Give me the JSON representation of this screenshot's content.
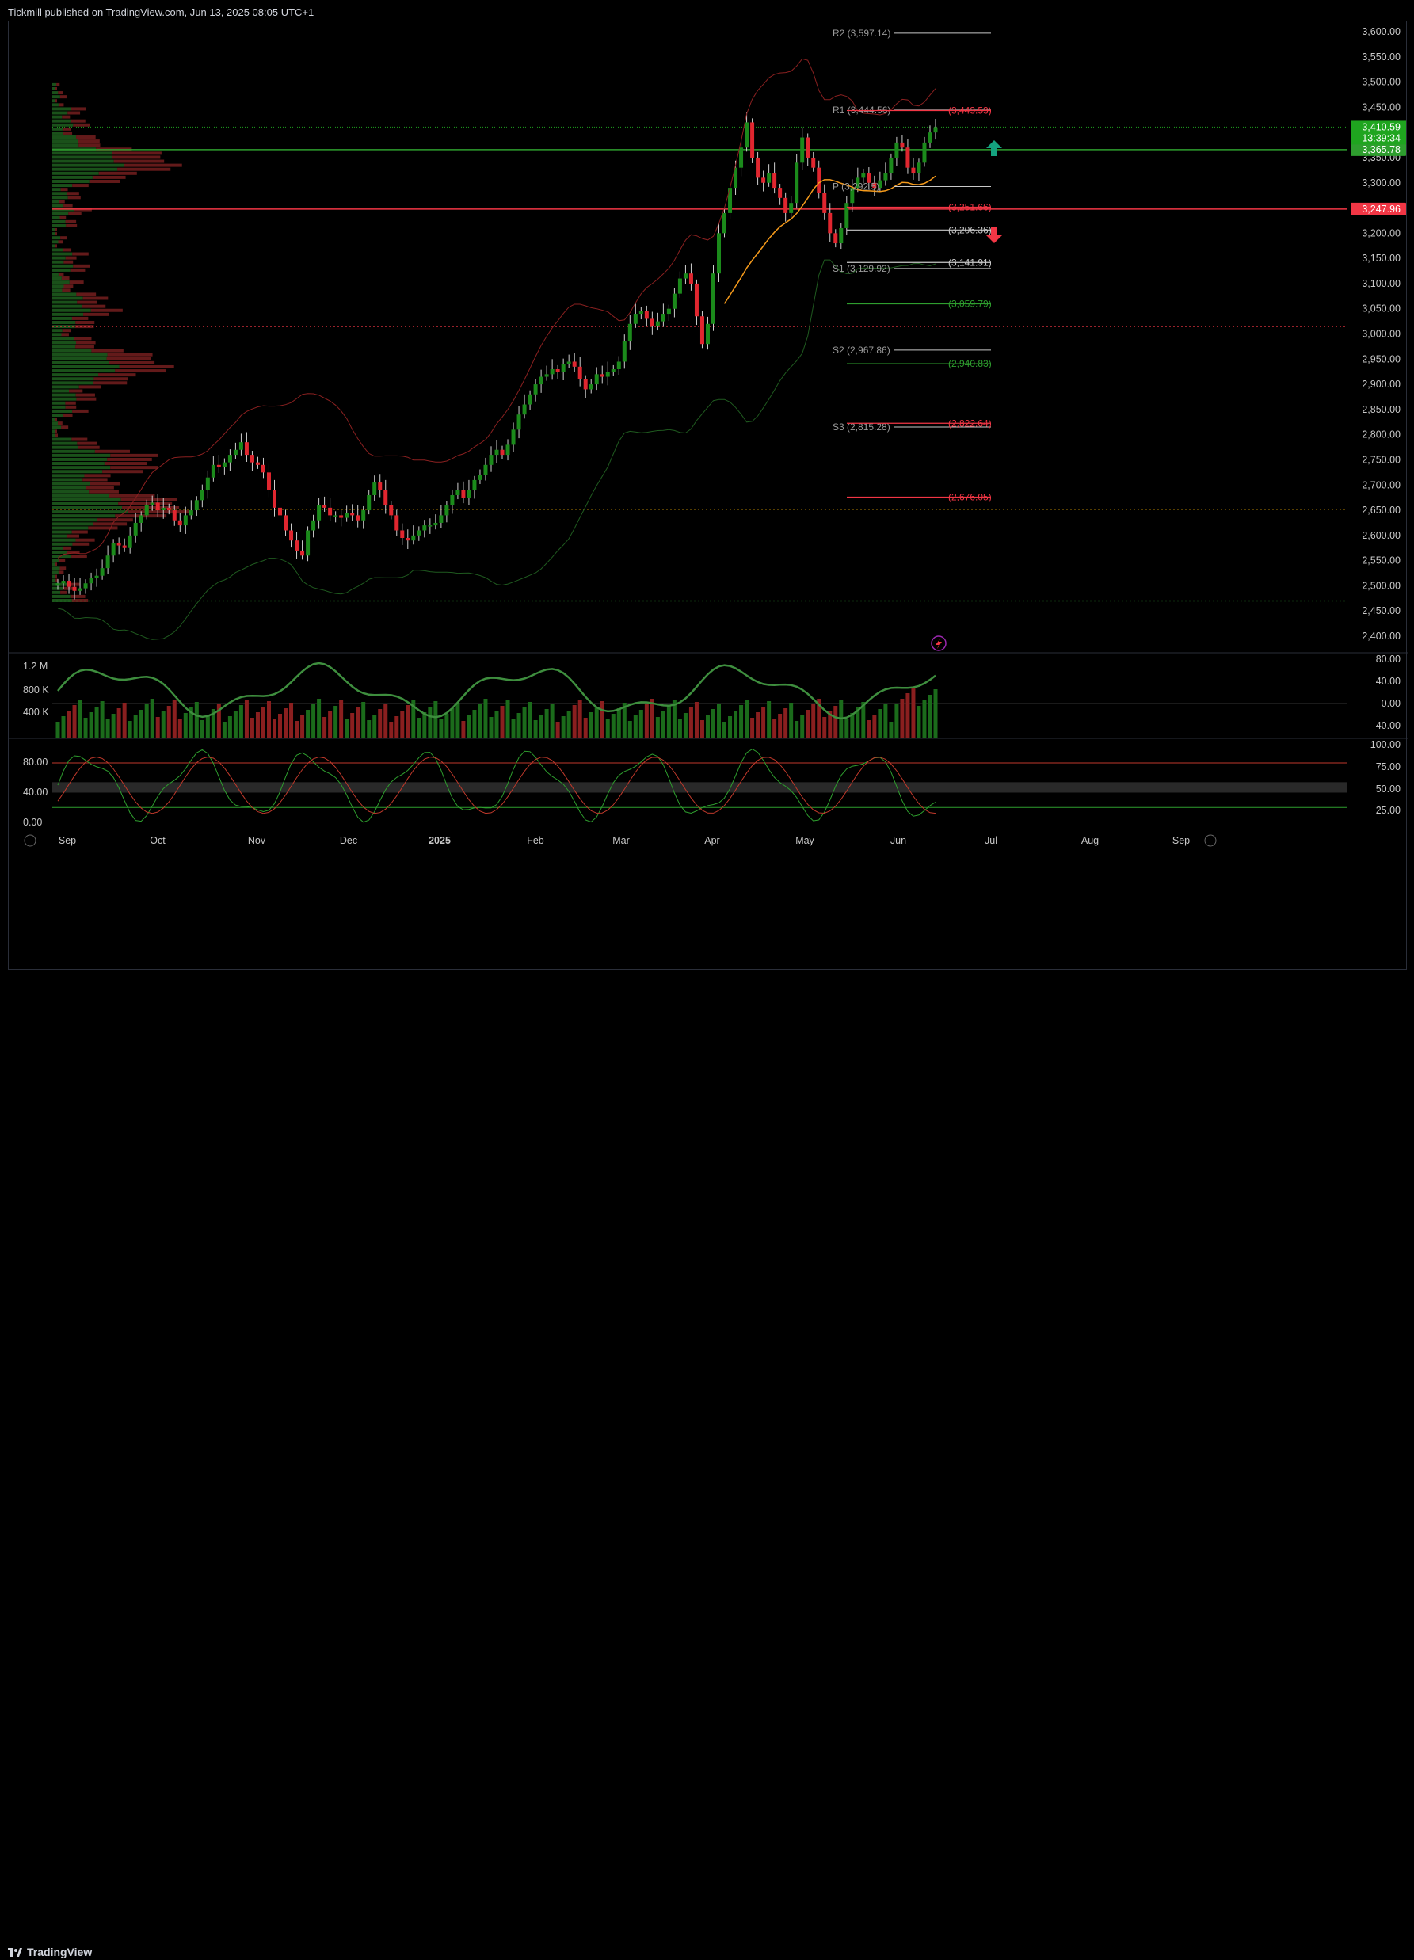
{
  "header": {
    "publisher_text": "Tickmill published on TradingView.com, Jun 13, 2025 08:05 UTC+1"
  },
  "footer": {
    "brand": "TradingView"
  },
  "theme": {
    "bg": "#000000",
    "up": "#1b8a1b",
    "down": "#e0262f",
    "grid": "#1a1a1a",
    "text": "#b2b5be",
    "last_price_bg": "#1fa51f",
    "resistance_color": "#2e9e2e",
    "support_color": "#f23645"
  },
  "chart_data": [
    {
      "type": "candlestick",
      "symbol_hint": "Gold spot daily",
      "price_axis_ticks": [
        "3,600.00",
        "3,550.00",
        "3,500.00",
        "3,450.00",
        "3,400.00",
        "3,350.00",
        "3,300.00",
        "3,250.00",
        "3,200.00",
        "3,150.00",
        "3,100.00",
        "3,050.00",
        "3,000.00",
        "2,950.00",
        "2,900.00",
        "2,850.00",
        "2,800.00",
        "2,750.00",
        "2,700.00",
        "2,650.00",
        "2,600.00",
        "2,550.00",
        "2,500.00",
        "2,450.00",
        "2,400.00"
      ],
      "ylim": [
        2370,
        3650
      ],
      "time_axis_ticks": [
        "Sep",
        "Oct",
        "Nov",
        "Dec",
        "2025",
        "Feb",
        "Mar",
        "Apr",
        "May",
        "Jun",
        "Jul",
        "Aug",
        "Sep"
      ],
      "last_price": {
        "value": "3,410.59",
        "countdown": "13:39:34",
        "numeric": 3410.59
      },
      "horizontal_lines": [
        {
          "label": "3,365.78",
          "value": 3365.78,
          "color": "#2e9e2e",
          "style": "solid",
          "has_tag": true
        },
        {
          "label": "3,247.96",
          "value": 3247.96,
          "color": "#f23645",
          "style": "solid",
          "has_tag": true
        },
        {
          "label": "",
          "value": 3015,
          "color": "#f23645",
          "style": "dotted",
          "has_tag": false
        },
        {
          "label": "",
          "value": 2652,
          "color": "#e6a600",
          "style": "dotted",
          "has_tag": false
        },
        {
          "label": "",
          "value": 2470,
          "color": "#2e9e2e",
          "style": "dotted",
          "has_tag": false
        }
      ],
      "pivots": [
        {
          "label": "R2 (3,597.14)",
          "value": 3597.14,
          "color": "#c8c8c8"
        },
        {
          "label": "R1 (3,444.56)",
          "value": 3444.56,
          "color": "#c8c8c8"
        },
        {
          "label": "P (3,292.5)",
          "value": 3292.5,
          "color": "#c8c8c8"
        },
        {
          "label": "S1 (3,129.92)",
          "value": 3129.92,
          "color": "#c8c8c8"
        },
        {
          "label": "S2 (2,967.86)",
          "value": 2967.86,
          "color": "#c8c8c8"
        },
        {
          "label": "S3 (2,815.28)",
          "value": 2815.28,
          "color": "#c8c8c8"
        }
      ],
      "levels": [
        {
          "label": "(3,443.53)",
          "value": 3443.53,
          "color": "#f23645"
        },
        {
          "label": "(3,251.66)",
          "value": 3251.66,
          "color": "#f23645"
        },
        {
          "label": "(3,206.36)",
          "value": 3206.36,
          "color": "#c8c8c8"
        },
        {
          "label": "(3,141.91)",
          "value": 3141.91,
          "color": "#c8c8c8"
        },
        {
          "label": "(3,059.79)",
          "value": 3059.79,
          "color": "#2e9e2e"
        },
        {
          "label": "(2,940.83)",
          "value": 2940.83,
          "color": "#2e9e2e"
        },
        {
          "label": "(2,822.64)",
          "value": 2822.64,
          "color": "#f23645"
        },
        {
          "label": "(2,676.05)",
          "value": 2676.05,
          "color": "#f23645"
        }
      ],
      "closes_approx": [
        2505,
        2510,
        2498,
        2490,
        2495,
        2505,
        2515,
        2520,
        2535,
        2560,
        2585,
        2580,
        2575,
        2600,
        2625,
        2640,
        2660,
        2665,
        2650,
        2655,
        2650,
        2630,
        2620,
        2640,
        2650,
        2670,
        2690,
        2715,
        2740,
        2735,
        2745,
        2760,
        2770,
        2785,
        2760,
        2745,
        2740,
        2725,
        2690,
        2655,
        2640,
        2610,
        2590,
        2570,
        2560,
        2610,
        2630,
        2660,
        2655,
        2640,
        2640,
        2635,
        2645,
        2640,
        2630,
        2650,
        2680,
        2705,
        2690,
        2660,
        2640,
        2610,
        2595,
        2590,
        2600,
        2610,
        2620,
        2620,
        2625,
        2640,
        2660,
        2680,
        2690,
        2675,
        2690,
        2710,
        2720,
        2740,
        2760,
        2770,
        2760,
        2780,
        2810,
        2840,
        2860,
        2880,
        2900,
        2915,
        2920,
        2930,
        2925,
        2940,
        2945,
        2935,
        2910,
        2890,
        2900,
        2920,
        2915,
        2925,
        2930,
        2945,
        2985,
        3020,
        3040,
        3045,
        3030,
        3015,
        3025,
        3040,
        3050,
        3080,
        3110,
        3120,
        3100,
        3035,
        2980,
        3020,
        3120,
        3200,
        3240,
        3290,
        3330,
        3370,
        3420,
        3350,
        3310,
        3300,
        3320,
        3290,
        3270,
        3240,
        3260,
        3340,
        3390,
        3350,
        3330,
        3280,
        3240,
        3200,
        3180,
        3210,
        3260,
        3290,
        3310,
        3320,
        3300,
        3290,
        3305,
        3320,
        3350,
        3380,
        3370,
        3330,
        3320,
        3340,
        3380,
        3400,
        3410
      ],
      "rsi_axis_ticks": [
        "80.00",
        "40.00",
        "0.00",
        "-40.00"
      ],
      "volume_axis_ticks": [
        "1.2 M",
        "800 K",
        "400 K"
      ],
      "stoch_axis_ticks": [
        "100.00",
        "75.00",
        "50.00",
        "25.00"
      ],
      "stoch_left_ticks": [
        "80.00",
        "40.00",
        "0.00"
      ]
    }
  ]
}
